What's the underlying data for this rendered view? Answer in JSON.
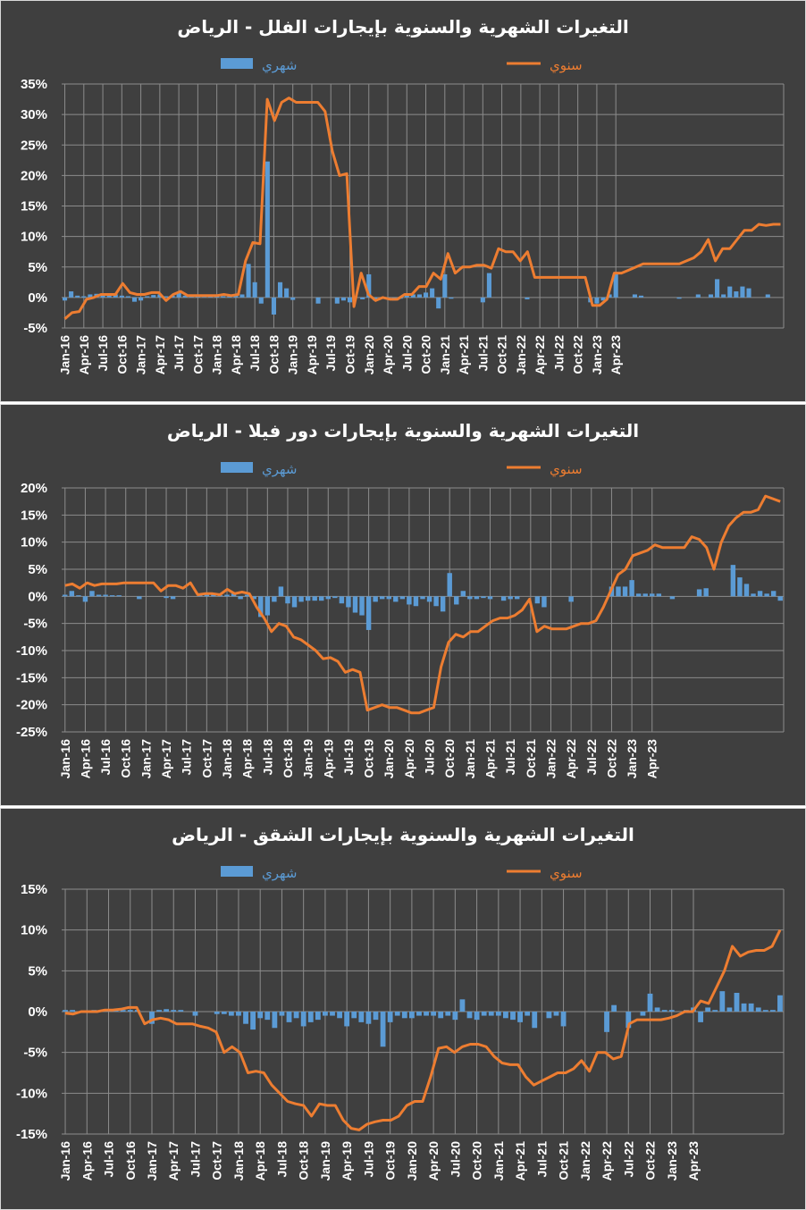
{
  "colors": {
    "monthly": "#5b9bd5",
    "yearly": "#ed7d31",
    "grid": "#8c8c8c",
    "text": "#ffffff",
    "background": "#3f3f3f"
  },
  "chart_data": [
    {
      "type": "bar+line",
      "title": "التغيرات الشهرية والسنوية بإيجارات الفلل - الرياض",
      "legend": {
        "placement": "top",
        "monthly_label": "شهري",
        "yearly_label": "سنوي"
      },
      "ylim": [
        -5,
        35
      ],
      "ytick_values": [
        -5,
        0,
        5,
        10,
        15,
        20,
        25,
        30,
        35
      ],
      "ytick_labels": [
        "-5%",
        "0%",
        "5%",
        "10%",
        "15%",
        "20%",
        "25%",
        "30%",
        "35%"
      ],
      "x_tick_labels": [
        "Jan-16",
        "Apr-16",
        "Jul-16",
        "Oct-16",
        "Jan-17",
        "Apr-17",
        "Jul-17",
        "Oct-17",
        "Jan-18",
        "Apr-18",
        "Jul-18",
        "Oct-18",
        "Jan-19",
        "Apr-19",
        "Jul-19",
        "Oct-19",
        "Jan-20",
        "Apr-20",
        "Jul-20",
        "Oct-20",
        "Jan-21",
        "Apr-21",
        "Jul-21",
        "Oct-21",
        "Jan-22",
        "Apr-22",
        "Jul-22",
        "Oct-22",
        "Jan-23",
        "Apr-23"
      ],
      "grid": true,
      "series": [
        {
          "name": "شهري",
          "kind": "bar",
          "values": [
            -0.5,
            1.0,
            0.3,
            0.2,
            0.5,
            0.6,
            0.4,
            0.5,
            0.5,
            0.3,
            0.2,
            -0.7,
            -0.5,
            0.2,
            0.4,
            0.5,
            0.2,
            0.3,
            0.8,
            0.3,
            0.3,
            0.2,
            0.1,
            0.3,
            0.3,
            0.2,
            0.5,
            0.3,
            0.5,
            5.5,
            2.5,
            -1.0,
            22.3,
            -2.8,
            2.5,
            1.5,
            -0.4,
            0.0,
            0.0,
            0.0,
            -1.0,
            0.0,
            0.0,
            -1.0,
            -0.5,
            -0.8,
            0.0,
            -0.3,
            3.8,
            -0.5,
            -0.2,
            -0.3,
            -0.5,
            -0.2,
            0.5,
            0.5,
            0.5,
            0.8,
            1.5,
            -1.8,
            3.8,
            -0.2,
            0.0,
            0.0,
            0.0,
            0.0,
            -0.8,
            4.0,
            0.0,
            0.0,
            0.0,
            0.0,
            0.0,
            -0.3,
            0.0,
            0.0,
            0.0,
            0.0,
            0.0,
            0.0,
            0.0,
            0.0,
            0.0,
            -0.8,
            -1.0,
            -0.5,
            0.5,
            3.8,
            0.0,
            0.0,
            0.5,
            0.3,
            0.0,
            0.0,
            0.0,
            0.0,
            0.0,
            -0.2,
            0.0,
            0.0,
            0.5,
            0.0,
            0.5,
            3.0,
            0.5,
            1.8,
            1.0,
            1.8,
            1.5,
            0.0,
            0.0,
            0.5,
            0.0,
            0.0
          ]
        },
        {
          "name": "سنوي",
          "kind": "line",
          "values": [
            -3.5,
            -2.5,
            -2.3,
            -0.3,
            0.0,
            0.5,
            0.5,
            0.5,
            2.3,
            0.8,
            0.5,
            0.5,
            0.8,
            0.8,
            -0.5,
            0.5,
            1.0,
            0.3,
            0.3,
            0.3,
            0.3,
            0.3,
            0.5,
            0.3,
            0.5,
            6.0,
            9.0,
            8.8,
            32.5,
            29.0,
            32.0,
            32.7,
            32.0,
            32.0,
            32.0,
            32.0,
            30.5,
            24.0,
            20.0,
            20.3,
            -1.5,
            4.0,
            0.5,
            -0.5,
            0.0,
            -0.3,
            -0.3,
            0.5,
            0.5,
            1.8,
            1.8,
            4.0,
            3.0,
            7.2,
            4.0,
            5.0,
            5.0,
            5.3,
            5.3,
            4.8,
            8.0,
            7.5,
            7.5,
            6.0,
            7.5,
            3.3,
            3.3,
            3.3,
            3.3,
            3.3,
            3.3,
            3.3,
            3.3,
            -1.3,
            -1.3,
            -0.3,
            4.0,
            4.0,
            4.5,
            5.0,
            5.5,
            5.5,
            5.5,
            5.5,
            5.5,
            5.5,
            6.0,
            6.5,
            7.5,
            9.5,
            6.0,
            8.0,
            8.0,
            9.5,
            11.0,
            11.0,
            12.0,
            11.8,
            12.0,
            12.0
          ]
        }
      ]
    },
    {
      "type": "bar+line",
      "title": "التغيرات الشهرية والسنوية بإيجارات دور فيلا - الرياض",
      "legend": {
        "placement": "top",
        "monthly_label": "شهري",
        "yearly_label": "سنوي"
      },
      "ylim": [
        -25,
        20
      ],
      "ytick_values": [
        -25,
        -20,
        -15,
        -10,
        -5,
        0,
        5,
        10,
        15,
        20
      ],
      "ytick_labels": [
        "-25%",
        "-20%",
        "-15%",
        "-10%",
        "-5%",
        "0%",
        "5%",
        "10%",
        "15%",
        "20%"
      ],
      "x_tick_labels": [
        "Jan-16",
        "Apr-16",
        "Jul-16",
        "Oct-16",
        "Jan-17",
        "Apr-17",
        "Jul-17",
        "Oct-17",
        "Jan-18",
        "Apr-18",
        "Jul-18",
        "Oct-18",
        "Jan-19",
        "Apr-19",
        "Jul-19",
        "Oct-19",
        "Jan-20",
        "Apr-20",
        "Jul-20",
        "Oct-20",
        "Jan-21",
        "Apr-21",
        "Jul-21",
        "Oct-21",
        "Jan-22",
        "Apr-22",
        "Jul-22",
        "Oct-22",
        "Jan-23",
        "Apr-23"
      ],
      "grid": true,
      "series": [
        {
          "name": "شهري",
          "kind": "bar",
          "values": [
            0.3,
            1.0,
            0.2,
            -1.0,
            1.0,
            0.3,
            0.3,
            0.2,
            0.2,
            0.0,
            0.0,
            -0.5,
            0.0,
            0.0,
            0.0,
            -0.3,
            -0.5,
            0.0,
            0.0,
            0.0,
            0.2,
            0.3,
            0.5,
            0.2,
            0.3,
            0.5,
            -0.5,
            0.3,
            -0.5,
            -3.8,
            -3.5,
            -1.0,
            1.8,
            -1.3,
            -2.0,
            -1.0,
            -0.8,
            -0.8,
            -0.8,
            -0.5,
            -0.3,
            -1.3,
            -2.0,
            -3.0,
            -3.5,
            -6.2,
            -1.0,
            -0.5,
            -0.5,
            -1.0,
            -0.5,
            -1.5,
            -1.8,
            -0.5,
            -1.0,
            -1.8,
            -2.8,
            4.3,
            -1.5,
            1.0,
            -0.5,
            -0.5,
            -0.3,
            -0.5,
            0.0,
            -0.8,
            -0.5,
            -0.5,
            0.0,
            0.0,
            -1.3,
            -2.0,
            0.0,
            0.0,
            0.0,
            -1.0,
            0.0,
            0.0,
            0.0,
            0.0,
            0.0,
            1.8,
            1.8,
            1.8,
            3.0,
            0.5,
            0.5,
            0.5,
            0.5,
            0.0,
            -0.5,
            0.0,
            0.0,
            0.0,
            1.3,
            1.5,
            0.0,
            0.0,
            0.0,
            5.8,
            3.5,
            2.3,
            0.5,
            1.0,
            0.5,
            1.0,
            -0.8
          ]
        },
        {
          "name": "سنوي",
          "kind": "line",
          "values": [
            2.0,
            2.3,
            1.5,
            2.5,
            2.0,
            2.3,
            2.3,
            2.3,
            2.5,
            2.5,
            2.5,
            2.5,
            2.5,
            1.0,
            2.0,
            2.0,
            1.5,
            2.5,
            0.3,
            0.5,
            0.5,
            0.3,
            1.3,
            0.5,
            0.8,
            0.5,
            -2.0,
            -4.0,
            -6.5,
            -5.0,
            -5.5,
            -7.5,
            -8.0,
            -9.0,
            -10.0,
            -11.5,
            -11.3,
            -12.0,
            -14.0,
            -13.5,
            -14.0,
            -21.0,
            -20.5,
            -20.0,
            -20.5,
            -20.5,
            -21.0,
            -21.5,
            -21.5,
            -21.0,
            -20.5,
            -13.0,
            -8.5,
            -7.0,
            -7.5,
            -6.5,
            -6.5,
            -5.5,
            -4.5,
            -4.0,
            -4.0,
            -3.5,
            -2.5,
            -0.5,
            -6.5,
            -5.5,
            -6.0,
            -6.0,
            -6.0,
            -5.5,
            -5.0,
            -5.0,
            -4.5,
            -2.0,
            1.0,
            4.0,
            5.0,
            7.5,
            8.0,
            8.5,
            9.5,
            9.0,
            9.0,
            9.0,
            9.0,
            11.0,
            10.5,
            9.0,
            5.0,
            10.0,
            13.0,
            14.5,
            15.5,
            15.5,
            16.0,
            18.5,
            18.0,
            17.5
          ]
        }
      ]
    },
    {
      "type": "bar+line",
      "title": "التغيرات الشهرية والسنوية بإيجارات الشقق - الرياض",
      "legend": {
        "placement": "top",
        "monthly_label": "شهري",
        "yearly_label": "سنوي"
      },
      "ylim": [
        -15,
        15
      ],
      "ytick_values": [
        -15,
        -10,
        -5,
        0,
        5,
        10,
        15
      ],
      "ytick_labels": [
        "-15%",
        "-10%",
        "-5%",
        "0%",
        "5%",
        "10%",
        "15%"
      ],
      "x_tick_labels": [
        "Jan-16",
        "Apr-16",
        "Jul-16",
        "Oct-16",
        "Jan-17",
        "Apr-17",
        "Jul-17",
        "Oct-17",
        "Jan-18",
        "Apr-18",
        "Jul-18",
        "Oct-18",
        "Jan-19",
        "Apr-19",
        "Jul-19",
        "Oct-19",
        "Jan-20",
        "Apr-20",
        "Jul-20",
        "Oct-20",
        "Jan-21",
        "Apr-21",
        "Jul-21",
        "Oct-21",
        "Jan-22",
        "Apr-22",
        "Jul-22",
        "Oct-22",
        "Jan-23",
        "Apr-23"
      ],
      "grid": true,
      "series": [
        {
          "name": "شهري",
          "kind": "bar",
          "values": [
            0.2,
            0.2,
            0.0,
            0.0,
            0.2,
            0.2,
            0.2,
            0.2,
            0.2,
            0.2,
            0.2,
            0.0,
            -1.5,
            0.2,
            0.3,
            0.2,
            0.2,
            0.0,
            -0.5,
            0.0,
            0.0,
            -0.3,
            -0.3,
            -0.5,
            -0.5,
            -1.5,
            -2.2,
            -0.8,
            -1.0,
            -2.0,
            -0.5,
            -1.3,
            -0.8,
            -1.8,
            -1.3,
            -1.0,
            -0.5,
            -0.5,
            -0.8,
            -1.8,
            -0.8,
            -1.3,
            -1.5,
            -1.0,
            -4.3,
            -1.3,
            -0.5,
            -0.8,
            -0.8,
            -0.5,
            -0.5,
            -0.5,
            -0.8,
            -0.5,
            -1.0,
            1.5,
            -0.8,
            -1.0,
            -0.5,
            -0.5,
            -0.5,
            -0.8,
            -1.0,
            -1.3,
            -0.5,
            -2.0,
            0.0,
            -0.8,
            -0.5,
            -1.8,
            0.0,
            0.0,
            0.0,
            0.0,
            0.0,
            -2.5,
            0.8,
            0.0,
            -2.0,
            0.0,
            -0.5,
            2.2,
            0.5,
            0.2,
            0.2,
            0.0,
            0.2,
            0.5,
            -1.3,
            0.5,
            0.2,
            2.5,
            0.5,
            2.3,
            1.0,
            1.0,
            0.5,
            0.2,
            0.2,
            2.0
          ]
        },
        {
          "name": "سنوي",
          "kind": "line",
          "values": [
            -0.2,
            -0.3,
            0.0,
            0.0,
            0.0,
            0.2,
            0.2,
            0.3,
            0.5,
            0.5,
            -1.5,
            -1.0,
            -0.8,
            -1.0,
            -1.5,
            -1.5,
            -1.5,
            -1.8,
            -2.0,
            -2.5,
            -5.0,
            -4.3,
            -5.0,
            -7.5,
            -7.3,
            -7.5,
            -9.0,
            -10.0,
            -11.0,
            -11.3,
            -11.5,
            -12.8,
            -11.3,
            -11.5,
            -11.5,
            -13.3,
            -14.3,
            -14.5,
            -13.8,
            -13.5,
            -13.3,
            -13.3,
            -12.8,
            -11.5,
            -11.0,
            -11.0,
            -8.0,
            -4.5,
            -4.3,
            -5.0,
            -4.3,
            -4.0,
            -4.0,
            -4.3,
            -5.5,
            -6.3,
            -6.5,
            -6.5,
            -8.0,
            -9.0,
            -8.5,
            -8.0,
            -7.5,
            -7.5,
            -7.0,
            -6.0,
            -7.3,
            -5.0,
            -5.0,
            -5.8,
            -5.5,
            -1.5,
            -1.0,
            -1.0,
            -1.0,
            -1.0,
            -0.8,
            -0.5,
            0.0,
            0.0,
            1.3,
            1.0,
            3.0,
            5.0,
            8.0,
            6.8,
            7.3,
            7.5,
            7.5,
            8.0,
            10.0
          ]
        }
      ]
    }
  ]
}
